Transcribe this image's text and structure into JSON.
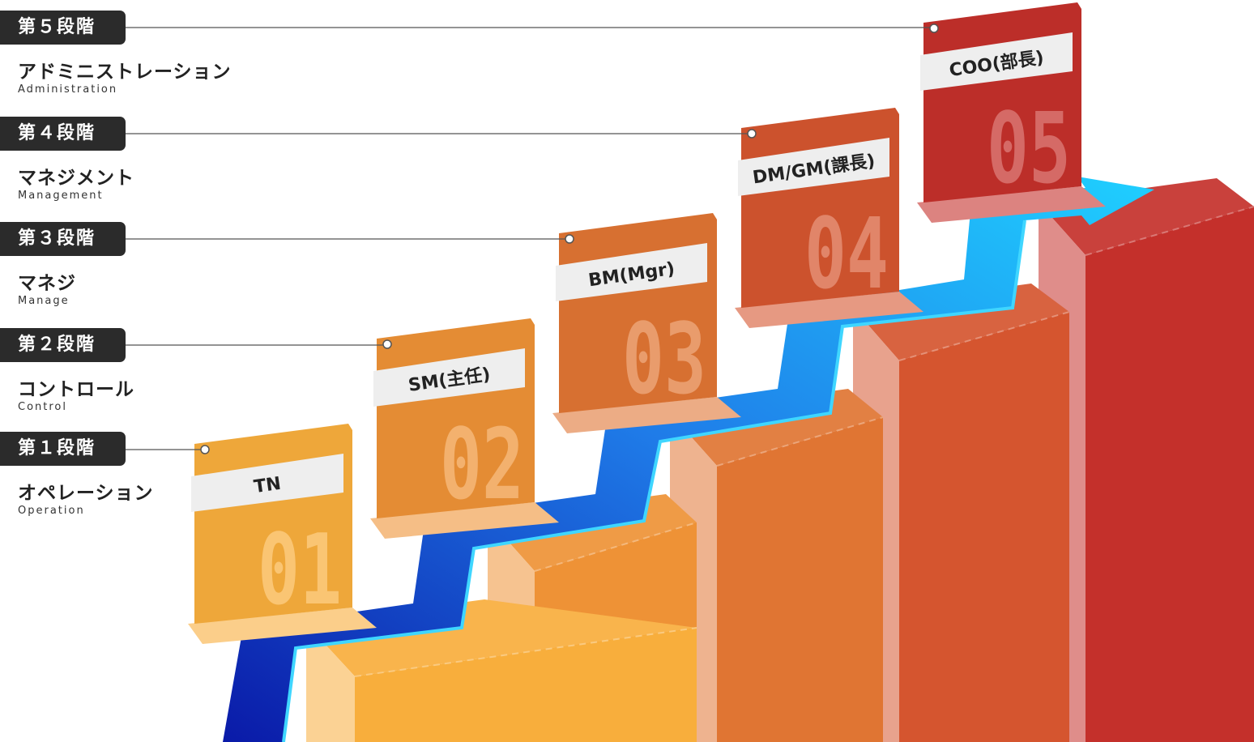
{
  "stages": [
    {
      "badge": "第１段階",
      "name_jp": "オペレーション",
      "name_en": "Operation",
      "role": "TN",
      "number": "01",
      "color": "#F8AE3C"
    },
    {
      "badge": "第２段階",
      "name_jp": "コントロール",
      "name_en": "Control",
      "role": "SM(主任)",
      "number": "02",
      "color": "#EE9236"
    },
    {
      "badge": "第３段階",
      "name_jp": "マネジ",
      "name_en": "Manage",
      "role": "BM(Mgr)",
      "number": "03",
      "color": "#E07533"
    },
    {
      "badge": "第４段階",
      "name_jp": "マネジメント",
      "name_en": "Management",
      "role": "DM/GM(課長)",
      "number": "04",
      "color": "#D5552F"
    },
    {
      "badge": "第５段階",
      "name_jp": "アドミニストレーション",
      "name_en": "Administration",
      "role": "COO(部長)",
      "number": "05",
      "color": "#C4302B"
    }
  ]
}
